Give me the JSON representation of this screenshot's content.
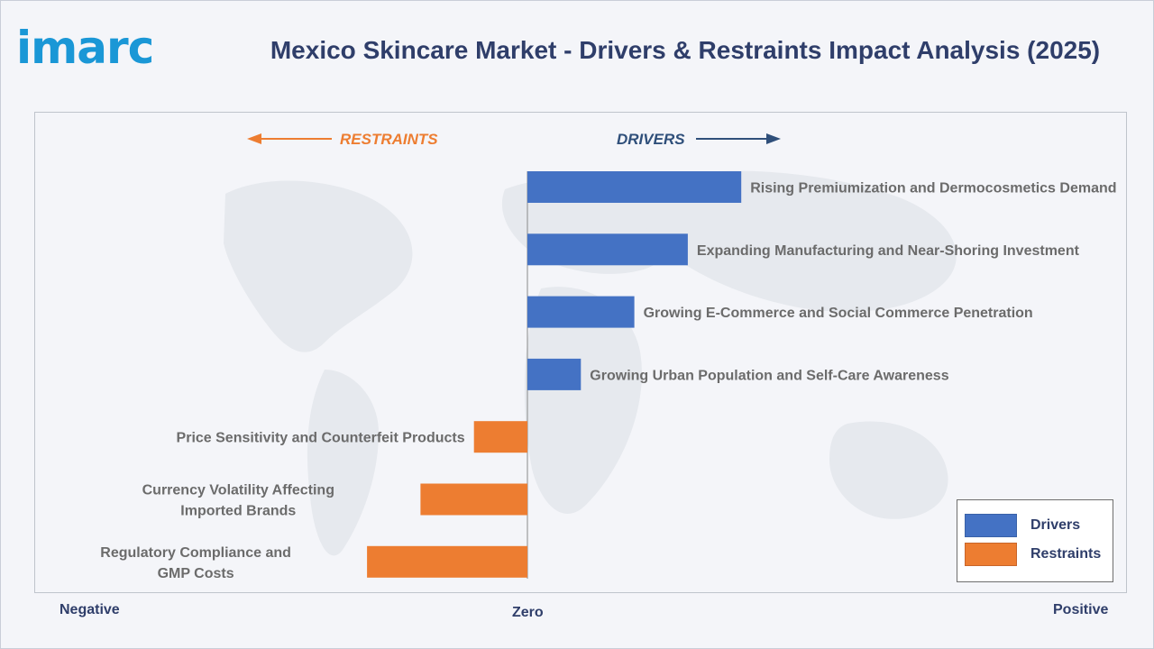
{
  "header": {
    "logo_text": "imarc",
    "title": "Mexico Skincare Market - Drivers & Restraints Impact Analysis (2025)"
  },
  "direction_labels": {
    "restraints": "RESTRAINTS",
    "drivers": "DRIVERS"
  },
  "axis": {
    "negative": "Negative",
    "zero": "Zero",
    "positive": "Positive"
  },
  "legend": {
    "drivers": "Drivers",
    "restraints": "Restraints"
  },
  "colors": {
    "drivers": "#4472c4",
    "restraints": "#ed7d31",
    "restraints_text": "#ed7d31",
    "drivers_text": "#2f4f7a"
  },
  "chart_data": {
    "type": "bar",
    "orientation": "horizontal",
    "title": "Mexico Skincare Market - Drivers & Restraints Impact Analysis (2025)",
    "xlabel": "",
    "ylabel": "",
    "xlim": [
      -3,
      11
    ],
    "grid": false,
    "legend_position": "bottom-right",
    "categories": [
      "Rising Premiumization and Dermocosmetics Demand",
      "Expanding Manufacturing and Near-Shoring Investment",
      "Growing E-Commerce and Social Commerce Penetration",
      "Growing Urban Population and Self-Care Awareness",
      "Price Sensitivity and Counterfeit Products",
      "Currency Volatility Affecting Imported Brands",
      "Regulatory Compliance and GMP Costs"
    ],
    "label_lines": [
      [
        "Rising Premiumization and Dermocosmetics Demand"
      ],
      [
        "Expanding Manufacturing and Near-Shoring Investment"
      ],
      [
        "Growing E-Commerce and Social Commerce Penetration"
      ],
      [
        "Growing Urban Population and Self-Care Awareness"
      ],
      [
        "Price Sensitivity and Counterfeit Products"
      ],
      [
        "Currency Volatility Affecting",
        "Imported Brands"
      ],
      [
        "Regulatory Compliance and",
        "GMP Costs"
      ]
    ],
    "series": [
      {
        "name": "Drivers",
        "values": [
          4,
          3,
          2,
          1,
          0,
          0,
          0
        ]
      },
      {
        "name": "Restraints",
        "values": [
          0,
          0,
          0,
          0,
          -1,
          -2,
          -3
        ]
      }
    ]
  }
}
